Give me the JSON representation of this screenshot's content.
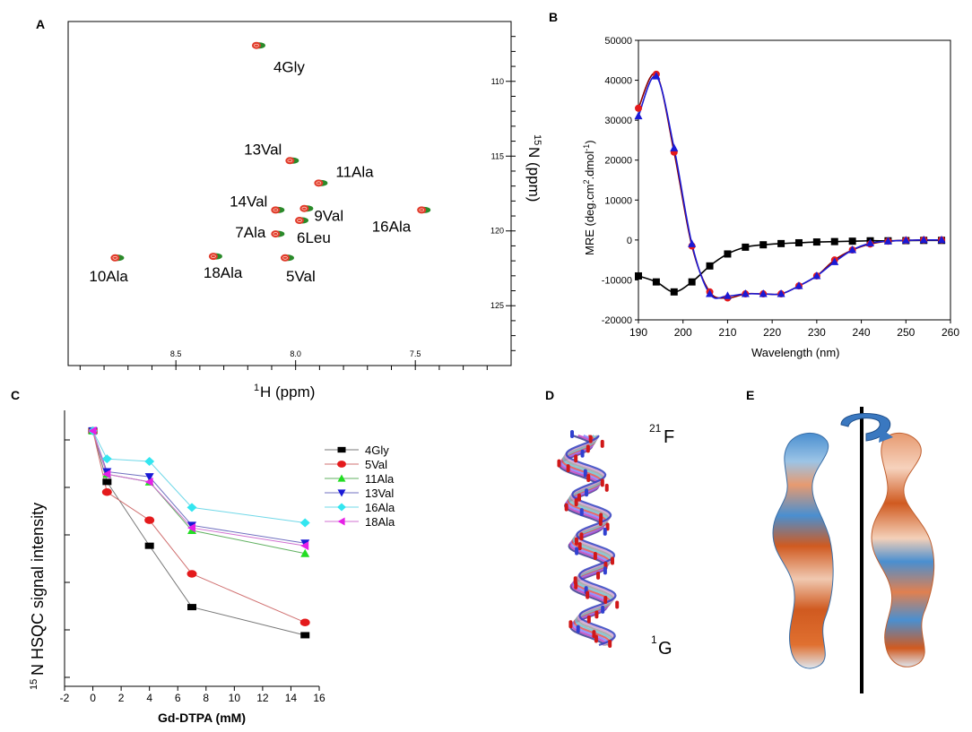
{
  "colors": {
    "black": "#000000",
    "red": "#e41a1c",
    "darkred": "#8b0000",
    "green": "#1e8c1e",
    "blue": "#1a1ad6",
    "cyan": "#33e6f0",
    "magenta": "#e620e6",
    "lime": "#22dd22",
    "gray": "#777777",
    "peak_red": "#e03a2a",
    "peak_green": "#2a8a2a"
  },
  "panel_letters": [
    "A",
    "B",
    "C",
    "D",
    "E"
  ],
  "chart_data": [
    {
      "id": "A",
      "type": "scatter",
      "title": "",
      "xlabel": "1H (ppm)",
      "xlabel_base": "H (ppm)",
      "xlabel_sup": "1",
      "ylabel": "15N (ppm)",
      "ylabel_base": "N (ppm)",
      "ylabel_sup": "15",
      "xlim": [
        8.95,
        7.1
      ],
      "ylim": [
        106,
        129
      ],
      "xticks": [
        "8.5",
        "8.0",
        "7.5"
      ],
      "xtick_values": [
        8.5,
        8.0,
        7.5
      ],
      "yticks": [
        "110",
        "115",
        "120",
        "125"
      ],
      "ytick_values": [
        110,
        115,
        120,
        125
      ],
      "peaks": [
        {
          "label": "4Gly",
          "x": 8.16,
          "y": 107.6
        },
        {
          "label": "13Val",
          "x": 8.02,
          "y": 115.3
        },
        {
          "label": "11Ala",
          "x": 7.9,
          "y": 116.8
        },
        {
          "label": "14Val",
          "x": 8.08,
          "y": 118.6
        },
        {
          "label": "9Val",
          "x": 7.96,
          "y": 118.5
        },
        {
          "label": "6Leu",
          "x": 7.98,
          "y": 119.3
        },
        {
          "label": "7Ala",
          "x": 8.08,
          "y": 120.2
        },
        {
          "label": "16Ala",
          "x": 7.47,
          "y": 118.6
        },
        {
          "label": "10Ala",
          "x": 8.75,
          "y": 121.8
        },
        {
          "label": "18Ala",
          "x": 8.34,
          "y": 121.7
        },
        {
          "label": "5Val",
          "x": 8.04,
          "y": 121.8
        }
      ]
    },
    {
      "id": "B",
      "type": "line",
      "title": "",
      "xlabel": "Wavelength (nm)",
      "ylabel": "MRE (deg.cm2.dmol-1)",
      "ylabel_main": "MRE (deg.cm",
      "ylabel_sup1": "2",
      "ylabel_mid": ".dmol",
      "ylabel_sup2": "-1",
      "ylabel_end": ")",
      "xlim": [
        190,
        260
      ],
      "ylim": [
        -20000,
        50000
      ],
      "xticks": [
        "190",
        "200",
        "210",
        "220",
        "230",
        "240",
        "250",
        "260"
      ],
      "xtick_values": [
        190,
        200,
        210,
        220,
        230,
        240,
        250,
        260
      ],
      "yticks": [
        "-20000",
        "-10000",
        "0",
        "10000",
        "20000",
        "30000",
        "40000",
        "50000"
      ],
      "ytick_values": [
        -20000,
        -10000,
        0,
        10000,
        20000,
        30000,
        40000,
        50000
      ],
      "series": [
        {
          "name": "black",
          "marker": "square",
          "x": [
            190,
            194,
            198,
            202,
            206,
            210,
            214,
            218,
            222,
            226,
            230,
            234,
            238,
            242,
            246,
            250,
            254,
            258
          ],
          "y": [
            -9000,
            -10500,
            -13000,
            -10500,
            -6500,
            -3500,
            -1800,
            -1200,
            -900,
            -700,
            -500,
            -400,
            -300,
            -200,
            -200,
            -150,
            -100,
            -100
          ]
        },
        {
          "name": "red",
          "marker": "circle",
          "x": [
            190,
            194,
            198,
            202,
            206,
            210,
            214,
            218,
            222,
            226,
            230,
            234,
            238,
            242,
            246,
            250,
            254,
            258
          ],
          "y": [
            33000,
            41500,
            22000,
            -1500,
            -13000,
            -14500,
            -13500,
            -13500,
            -13500,
            -11500,
            -9000,
            -5000,
            -2500,
            -1000,
            -300,
            -100,
            0,
            0
          ]
        },
        {
          "name": "blue",
          "marker": "triangle",
          "x": [
            190,
            194,
            198,
            202,
            206,
            210,
            214,
            218,
            222,
            226,
            230,
            234,
            238,
            242,
            246,
            250,
            254,
            258
          ],
          "y": [
            31000,
            41000,
            23000,
            -1000,
            -13500,
            -14000,
            -13500,
            -13500,
            -13500,
            -11500,
            -9000,
            -5500,
            -2500,
            -800,
            -300,
            -100,
            0,
            0
          ]
        }
      ]
    },
    {
      "id": "C",
      "type": "line",
      "title": "",
      "xlabel": "Gd-DTPA (mM)",
      "ylabel": "15N HSQC signal intensity",
      "ylabel_base": "N HSQC signal intensity",
      "ylabel_sup": "15",
      "xlim": [
        -2,
        16
      ],
      "ylim": [
        0,
        1.08
      ],
      "xticks": [
        "-2",
        "0",
        "2",
        "4",
        "6",
        "8",
        "10",
        "12",
        "14",
        "16"
      ],
      "xtick_values": [
        -2,
        0,
        2,
        4,
        6,
        8,
        10,
        12,
        14,
        16
      ],
      "legend_position": "right",
      "x": [
        0,
        1,
        4,
        7,
        15
      ],
      "series": [
        {
          "name": "4Gly",
          "marker": "square",
          "values": [
            1.0,
            0.8,
            0.55,
            0.31,
            0.2
          ]
        },
        {
          "name": "5Val",
          "marker": "circle",
          "values": [
            1.0,
            0.76,
            0.65,
            0.44,
            0.25
          ]
        },
        {
          "name": "11Ala",
          "marker": "triangle-up",
          "values": [
            1.0,
            0.83,
            0.8,
            0.61,
            0.52
          ]
        },
        {
          "name": "13Val",
          "marker": "triangle-down",
          "values": [
            1.0,
            0.84,
            0.82,
            0.63,
            0.56
          ]
        },
        {
          "name": "16Ala",
          "marker": "diamond",
          "values": [
            1.0,
            0.89,
            0.88,
            0.7,
            0.64
          ]
        },
        {
          "name": "18Ala",
          "marker": "triangle-left",
          "values": [
            1.0,
            0.83,
            0.8,
            0.62,
            0.55
          ]
        }
      ]
    }
  ],
  "panel_D": {
    "label_top": "21F",
    "label_top_sup": "21",
    "label_top_base": "F",
    "label_bottom": "1G",
    "label_bottom_sup": "1",
    "label_bottom_base": "G"
  }
}
